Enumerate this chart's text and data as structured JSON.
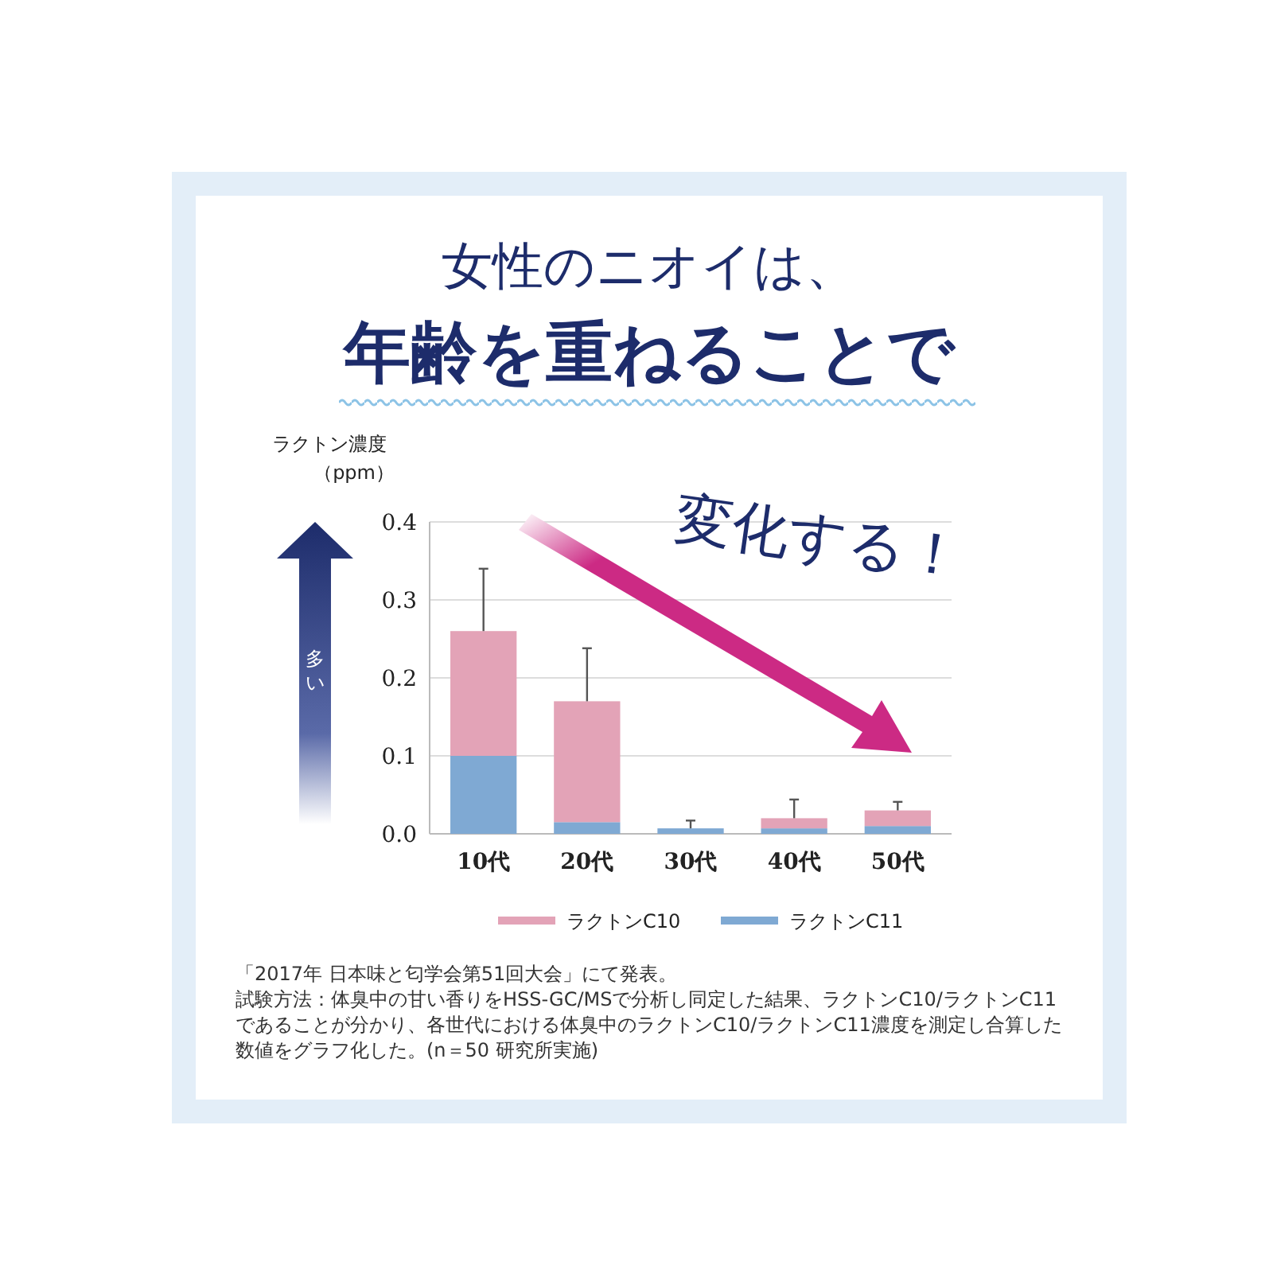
{
  "chart_data": {
    "type": "bar",
    "title": "女性のニオイは、",
    "subtitle": "年齢を重ねることで",
    "ylabel": "ラクトン濃度（ppm）",
    "categories": [
      "10代",
      "20代",
      "30代",
      "40代",
      "50代"
    ],
    "stacked": true,
    "series": [
      {
        "name": "ラクトンC11",
        "color": "#7fa9d3",
        "values": [
          0.1,
          0.015,
          0.007,
          0.007,
          0.01
        ]
      },
      {
        "name": "ラクトンC10",
        "color": "#e3a3b7",
        "values": [
          0.16,
          0.155,
          0,
          0.013,
          0.02
        ],
        "errors": [
          [
            0.26,
            0.34
          ],
          [
            0.17,
            0.238
          ],
          [
            0.007,
            0.017
          ],
          [
            0.02,
            0.044
          ],
          [
            0.03,
            0.041
          ]
        ]
      }
    ],
    "ylim": [
      0,
      0.4
    ],
    "yticks": [
      {
        "value": 0,
        "label": "0.0"
      },
      0.1,
      0.2,
      0.3,
      0.4
    ],
    "grid": "y",
    "legend": "bottom",
    "annotations": [
      "変化する！",
      "多い",
      "「2017年 日本味と匂学会第51回大会」にて発表。",
      "試験方法：体臭中の甘い香りをHSS-GC/MSで分析し同定した結果、ラクトンC10/ラクトンC11であることが分かり、各世代における体臭中のラクトンC10/ラクトンC11濃度を測定し合算した数値をグラフ化した。(n＝50 研究所実施)"
    ]
  }
}
